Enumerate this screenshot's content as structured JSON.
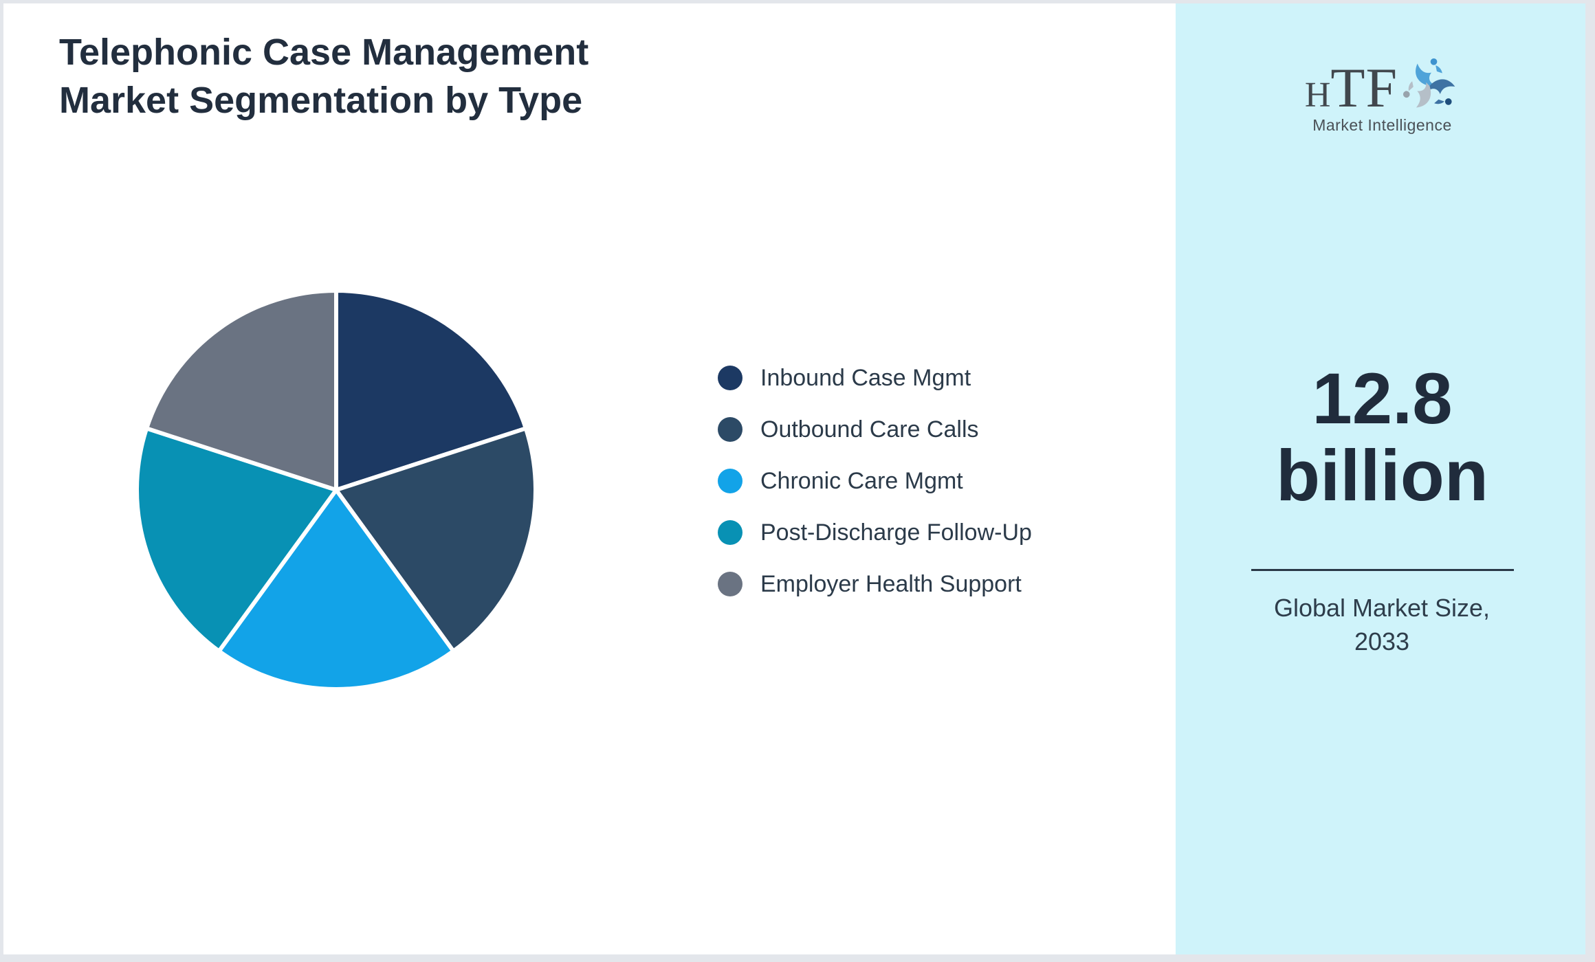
{
  "header": {
    "title_line1": "Telephonic Case Management",
    "title_line2": "Market Segmentation by Type"
  },
  "chart_data": {
    "type": "pie",
    "title": "Telephonic Case Management Market Segmentation by Type",
    "labels": [
      "Inbound Case Mgmt",
      "Outbound Care Calls",
      "Chronic Care Mgmt",
      "Post-Discharge Follow-Up",
      "Employer Health Support"
    ],
    "values": [
      20,
      20,
      20,
      20,
      20
    ],
    "values_note": "no numeric data labels shown; all five slices appear equal (~20% each, estimated from slice angles of ~72 deg)",
    "colors": [
      "#1C3963",
      "#2C4A66",
      "#12A3E8",
      "#0891B4",
      "#6A7382"
    ],
    "start_angle_deg": 0,
    "direction": "clockwise",
    "slice_border_color": "#FFFFFF",
    "legend_position": "right-of-chart",
    "grid": "off"
  },
  "panel": {
    "background": "#CFF3FA",
    "market_size_value": "12.8",
    "market_size_unit": "billion",
    "caption": "Global Market Size, 2033"
  },
  "logo": {
    "text_small": "H",
    "text_large": "TF",
    "subtitle": "Market Intelligence",
    "swirl_colors": [
      "#4FA3D9",
      "#3E72A3",
      "#B5BFC8"
    ],
    "head_colors": [
      "#3E93CF",
      "#1F4E7C",
      "#98A3AC"
    ]
  },
  "page": {
    "border_color": "#E3E6EB",
    "background": "#FFFFFF",
    "accent_text_color": "#202C3C"
  }
}
